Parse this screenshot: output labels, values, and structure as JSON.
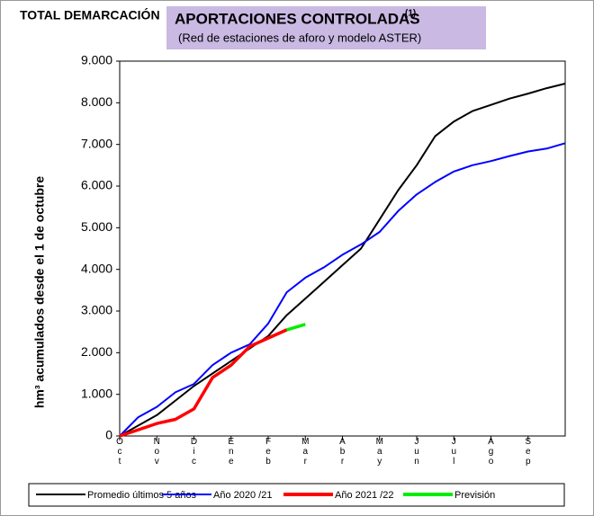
{
  "chart_data": {
    "type": "line",
    "region": "TOTAL DEMARCACIÓN",
    "title": "APORTACIONES CONTROLADAS",
    "title_note": "(1)",
    "subtitle": "(Red de estaciones de aforo y modelo ASTER)",
    "y_label": "hm³ acumulados desde el 1 de octubre",
    "categories": [
      "Oct",
      null,
      "Nov",
      null,
      "Dic",
      null,
      "Ene",
      null,
      "Feb",
      null,
      "Mar",
      null,
      "Abr",
      null,
      "May",
      null,
      "Jun",
      null,
      "Jul",
      null,
      "Ago",
      null,
      "Sep",
      null,
      null
    ],
    "ylim": [
      0,
      9000
    ],
    "yticks": [
      0,
      {
        "value": 1000,
        "label": "1.000"
      },
      {
        "value": 2000,
        "label": "2.000"
      },
      {
        "value": 3000,
        "label": "3.000"
      },
      {
        "value": 4000,
        "label": "4.000"
      },
      {
        "value": 5000,
        "label": "5.000"
      },
      {
        "value": 6000,
        "label": "6.000"
      },
      {
        "value": 7000,
        "label": "7.000"
      },
      {
        "value": 8000,
        "label": "8.000"
      },
      {
        "value": 9000,
        "label": "9.000"
      }
    ],
    "grid": false,
    "series": [
      {
        "name": "Promedio últimos 5 años",
        "color": "#000000",
        "values": [
          0,
          250,
          500,
          850,
          1200,
          1500,
          1800,
          2100,
          2400,
          2900,
          3300,
          3700,
          4100,
          4500,
          5200,
          5900,
          6500,
          7200,
          7550,
          7800,
          7950,
          8100,
          8220,
          8350,
          8460
        ]
      },
      {
        "name": "Año 2020 /21",
        "color": "#0000ff",
        "values": [
          0,
          450,
          700,
          1050,
          1250,
          1700,
          2000,
          2200,
          2700,
          3450,
          3800,
          4050,
          4350,
          4600,
          4900,
          5400,
          5800,
          6100,
          6350,
          6500,
          6600,
          6720,
          6830,
          6900,
          7030
        ]
      },
      {
        "name": "Año 2021 /22",
        "color": "#ff0000",
        "values": [
          0,
          150,
          300,
          400,
          650,
          1400,
          1700,
          2150,
          2350,
          2550,
          null,
          null,
          null,
          null,
          null,
          null,
          null,
          null,
          null,
          null,
          null,
          null,
          null,
          null,
          null
        ]
      },
      {
        "name": "Previsión",
        "color": "#00ee00",
        "values": [
          null,
          null,
          null,
          null,
          null,
          null,
          null,
          null,
          null,
          2550,
          2680,
          null,
          null,
          null,
          null,
          null,
          null,
          null,
          null,
          null,
          null,
          null,
          null,
          null,
          null
        ]
      }
    ]
  }
}
